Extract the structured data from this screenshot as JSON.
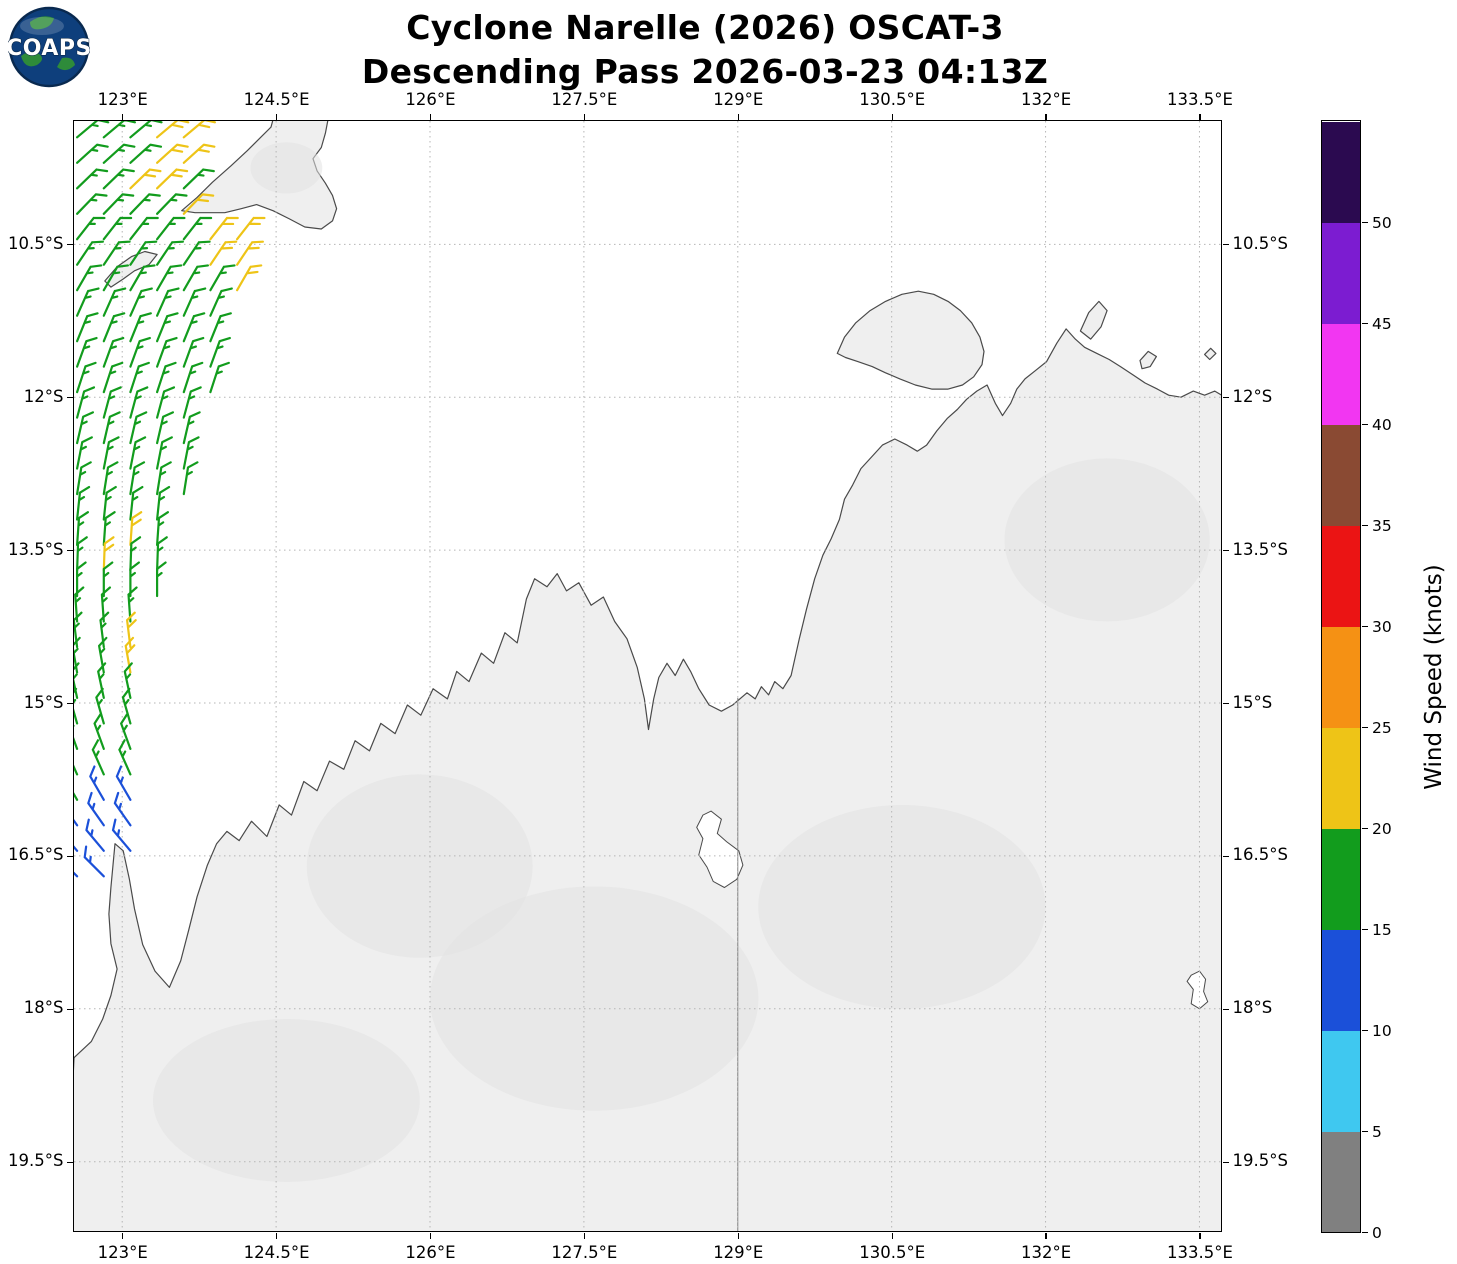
{
  "logo": {
    "text": "COAPS"
  },
  "chart_data": {
    "type": "map-windbarbs",
    "title_line1": "Cyclone Narelle (2026) OSCAT-3",
    "title_line2": "Descending Pass 2026-03-23 04:13Z",
    "lon_range": [
      122.53,
      133.71
    ],
    "lat_range": [
      9.29,
      20.18
    ],
    "x_ticks": [
      {
        "v": 123.0,
        "label": "123°E"
      },
      {
        "v": 124.5,
        "label": "124.5°E"
      },
      {
        "v": 126.0,
        "label": "126°E"
      },
      {
        "v": 127.5,
        "label": "127.5°E"
      },
      {
        "v": 129.0,
        "label": "129°E"
      },
      {
        "v": 130.5,
        "label": "130.5°E"
      },
      {
        "v": 132.0,
        "label": "132°E"
      },
      {
        "v": 133.5,
        "label": "133.5°E"
      }
    ],
    "y_ticks": [
      {
        "v": 10.5,
        "label": "10.5°S"
      },
      {
        "v": 12.0,
        "label": "12°S"
      },
      {
        "v": 13.5,
        "label": "13.5°S"
      },
      {
        "v": 15.0,
        "label": "15°S"
      },
      {
        "v": 16.5,
        "label": "16.5°S"
      },
      {
        "v": 18.0,
        "label": "18°S"
      },
      {
        "v": 19.5,
        "label": "19.5°S"
      }
    ],
    "grid": "dotted",
    "colorbar": {
      "label": "Wind Speed (knots)",
      "min": 0,
      "max": 55,
      "ticks": [
        0,
        5,
        10,
        15,
        20,
        25,
        30,
        35,
        40,
        45,
        50
      ],
      "colors": [
        "#808080",
        "#3fc8f0",
        "#1b50d9",
        "#129c1d",
        "#eec417",
        "#f59114",
        "#eb1414",
        "#8a4a33",
        "#f236f2",
        "#7c1cd1",
        "#2b0a50"
      ]
    },
    "speed_colors": {
      "B": {
        "color": "#1b50d9",
        "knots": 12
      },
      "G": {
        "color": "#129c1d",
        "knots": 17
      },
      "Y": {
        "color": "#eec417",
        "knots": 22
      }
    },
    "barb_dlon": 0.26,
    "barb_rows": [
      [
        9.45,
        122.56,
        50,
        "GGGYY"
      ],
      [
        9.7,
        122.56,
        48,
        "GGGYY"
      ],
      [
        9.95,
        122.56,
        46,
        "GGYYG"
      ],
      [
        10.2,
        122.56,
        44,
        "GGGGY"
      ],
      [
        10.45,
        122.56,
        38,
        "GGGGGYY"
      ],
      [
        10.7,
        122.56,
        34,
        "GGGGGYY"
      ],
      [
        10.95,
        122.56,
        30,
        "GGGGGGY"
      ],
      [
        11.2,
        122.56,
        24,
        "GGGGGG"
      ],
      [
        11.45,
        122.56,
        22,
        "GGGGGG"
      ],
      [
        11.7,
        122.56,
        20,
        "GGGGGG"
      ],
      [
        11.95,
        122.56,
        18,
        "GGGGGG"
      ],
      [
        12.2,
        122.56,
        15,
        "GGGGG"
      ],
      [
        12.45,
        122.56,
        13,
        "GGGGG"
      ],
      [
        12.7,
        122.56,
        11,
        "GGGGG"
      ],
      [
        12.95,
        122.56,
        9,
        "GGGGG"
      ],
      [
        13.2,
        122.56,
        6,
        "GGGG"
      ],
      [
        13.45,
        122.56,
        4,
        "GGYG"
      ],
      [
        13.7,
        122.56,
        2,
        "GYGG"
      ],
      [
        13.95,
        122.56,
        0,
        "GGGG"
      ],
      [
        14.2,
        122.56,
        356,
        "GGG"
      ],
      [
        14.45,
        122.56,
        353,
        "GGY"
      ],
      [
        14.7,
        122.56,
        350,
        "GGY"
      ],
      [
        14.95,
        122.56,
        348,
        "GGG"
      ],
      [
        15.2,
        122.56,
        344,
        "GGG"
      ],
      [
        15.45,
        122.56,
        340,
        "GGG"
      ],
      [
        15.7,
        122.56,
        336,
        "GGG"
      ],
      [
        15.95,
        122.56,
        330,
        "GBB"
      ],
      [
        16.2,
        122.56,
        325,
        "BBB"
      ],
      [
        16.45,
        122.56,
        320,
        "BBB"
      ],
      [
        16.7,
        122.56,
        315,
        "BB"
      ]
    ],
    "style": {
      "land_fill": "#efefef",
      "terrain_fill": "#e2e2e2",
      "coast_color": "#4a4a4a",
      "grid_color": "#b5b5b5"
    },
    "geo": {
      "land": {
        "australia-mainland": [
          [
            122.53,
            18.48
          ],
          [
            122.7,
            18.32
          ],
          [
            122.81,
            18.1
          ],
          [
            122.89,
            17.87
          ],
          [
            122.95,
            17.61
          ],
          [
            122.89,
            17.36
          ],
          [
            122.87,
            17.07
          ],
          [
            122.89,
            16.81
          ],
          [
            122.93,
            16.38
          ],
          [
            123.01,
            16.45
          ],
          [
            123.07,
            16.73
          ],
          [
            123.12,
            17.02
          ],
          [
            123.2,
            17.37
          ],
          [
            123.32,
            17.63
          ],
          [
            123.46,
            17.79
          ],
          [
            123.57,
            17.53
          ],
          [
            123.65,
            17.22
          ],
          [
            123.73,
            16.9
          ],
          [
            123.83,
            16.59
          ],
          [
            123.92,
            16.38
          ],
          [
            124.02,
            16.26
          ],
          [
            124.14,
            16.35
          ],
          [
            124.26,
            16.16
          ],
          [
            124.41,
            16.31
          ],
          [
            124.53,
            16.0
          ],
          [
            124.65,
            16.1
          ],
          [
            124.77,
            15.77
          ],
          [
            124.9,
            15.86
          ],
          [
            125.02,
            15.57
          ],
          [
            125.16,
            15.65
          ],
          [
            125.27,
            15.37
          ],
          [
            125.41,
            15.47
          ],
          [
            125.52,
            15.2
          ],
          [
            125.66,
            15.3
          ],
          [
            125.78,
            15.02
          ],
          [
            125.91,
            15.12
          ],
          [
            126.03,
            14.86
          ],
          [
            126.17,
            14.96
          ],
          [
            126.26,
            14.69
          ],
          [
            126.38,
            14.79
          ],
          [
            126.5,
            14.51
          ],
          [
            126.62,
            14.61
          ],
          [
            126.73,
            14.31
          ],
          [
            126.85,
            14.41
          ],
          [
            126.94,
            13.98
          ],
          [
            127.02,
            13.78
          ],
          [
            127.14,
            13.86
          ],
          [
            127.24,
            13.73
          ],
          [
            127.33,
            13.9
          ],
          [
            127.45,
            13.82
          ],
          [
            127.57,
            14.04
          ],
          [
            127.69,
            13.96
          ],
          [
            127.8,
            14.2
          ],
          [
            127.92,
            14.37
          ],
          [
            128.02,
            14.65
          ],
          [
            128.09,
            14.96
          ],
          [
            128.13,
            15.26
          ],
          [
            128.18,
            14.96
          ],
          [
            128.23,
            14.75
          ],
          [
            128.31,
            14.61
          ],
          [
            128.39,
            14.73
          ],
          [
            128.47,
            14.57
          ],
          [
            128.54,
            14.69
          ],
          [
            128.62,
            14.86
          ],
          [
            128.72,
            15.02
          ],
          [
            128.84,
            15.08
          ],
          [
            128.95,
            15.02
          ],
          [
            129.09,
            14.9
          ],
          [
            129.17,
            14.96
          ],
          [
            129.23,
            14.84
          ],
          [
            129.3,
            14.92
          ],
          [
            129.36,
            14.79
          ],
          [
            129.44,
            14.86
          ],
          [
            129.52,
            14.73
          ],
          [
            129.6,
            14.37
          ],
          [
            129.67,
            14.08
          ],
          [
            129.75,
            13.78
          ],
          [
            129.83,
            13.55
          ],
          [
            129.91,
            13.39
          ],
          [
            129.99,
            13.2
          ],
          [
            130.04,
            13.0
          ],
          [
            130.12,
            12.86
          ],
          [
            130.2,
            12.7
          ],
          [
            130.3,
            12.59
          ],
          [
            130.41,
            12.47
          ],
          [
            130.53,
            12.41
          ],
          [
            130.65,
            12.47
          ],
          [
            130.75,
            12.53
          ],
          [
            130.84,
            12.47
          ],
          [
            130.94,
            12.33
          ],
          [
            131.04,
            12.21
          ],
          [
            131.14,
            12.12
          ],
          [
            131.23,
            12.02
          ],
          [
            131.33,
            11.94
          ],
          [
            131.43,
            11.88
          ],
          [
            131.51,
            12.06
          ],
          [
            131.58,
            12.18
          ],
          [
            131.66,
            12.06
          ],
          [
            131.72,
            11.92
          ],
          [
            131.8,
            11.82
          ],
          [
            131.9,
            11.74
          ],
          [
            132.01,
            11.65
          ],
          [
            132.11,
            11.47
          ],
          [
            132.2,
            11.33
          ],
          [
            132.29,
            11.43
          ],
          [
            132.38,
            11.51
          ],
          [
            132.5,
            11.57
          ],
          [
            132.62,
            11.63
          ],
          [
            132.73,
            11.7
          ],
          [
            132.85,
            11.78
          ],
          [
            132.97,
            11.86
          ],
          [
            133.09,
            11.92
          ],
          [
            133.2,
            11.98
          ],
          [
            133.32,
            12.0
          ],
          [
            133.44,
            11.94
          ],
          [
            133.55,
            11.98
          ],
          [
            133.65,
            11.94
          ],
          [
            133.75,
            12.0
          ],
          [
            133.75,
            20.25
          ],
          [
            122.45,
            20.25
          ]
        ],
        "timor": [
          [
            123.58,
            10.17
          ],
          [
            123.73,
            10.04
          ],
          [
            123.88,
            9.89
          ],
          [
            124.06,
            9.73
          ],
          [
            124.22,
            9.58
          ],
          [
            124.35,
            9.45
          ],
          [
            124.45,
            9.35
          ],
          [
            124.49,
            9.2
          ],
          [
            125.02,
            9.2
          ],
          [
            124.98,
            9.41
          ],
          [
            124.94,
            9.55
          ],
          [
            124.86,
            9.66
          ],
          [
            124.9,
            9.78
          ],
          [
            124.98,
            9.9
          ],
          [
            125.05,
            10.02
          ],
          [
            125.09,
            10.15
          ],
          [
            125.05,
            10.27
          ],
          [
            124.94,
            10.35
          ],
          [
            124.78,
            10.33
          ],
          [
            124.63,
            10.25
          ],
          [
            124.47,
            10.17
          ],
          [
            124.31,
            10.11
          ],
          [
            124.16,
            10.15
          ],
          [
            124.0,
            10.19
          ],
          [
            123.85,
            10.19
          ],
          [
            123.71,
            10.19
          ]
        ],
        "rote": [
          [
            122.83,
            10.86
          ],
          [
            122.95,
            10.72
          ],
          [
            123.09,
            10.62
          ],
          [
            123.22,
            10.57
          ],
          [
            123.34,
            10.6
          ],
          [
            123.26,
            10.7
          ],
          [
            123.12,
            10.76
          ],
          [
            123.01,
            10.84
          ],
          [
            122.89,
            10.92
          ]
        ],
        "tiwi-islands": [
          [
            129.97,
            11.57
          ],
          [
            130.04,
            11.41
          ],
          [
            130.15,
            11.27
          ],
          [
            130.29,
            11.15
          ],
          [
            130.44,
            11.06
          ],
          [
            130.6,
            10.99
          ],
          [
            130.76,
            10.96
          ],
          [
            130.91,
            10.99
          ],
          [
            131.05,
            11.06
          ],
          [
            131.17,
            11.15
          ],
          [
            131.28,
            11.27
          ],
          [
            131.36,
            11.41
          ],
          [
            131.4,
            11.55
          ],
          [
            131.38,
            11.68
          ],
          [
            131.3,
            11.8
          ],
          [
            131.19,
            11.88
          ],
          [
            131.05,
            11.92
          ],
          [
            130.89,
            11.92
          ],
          [
            130.73,
            11.88
          ],
          [
            130.58,
            11.82
          ],
          [
            130.44,
            11.76
          ],
          [
            130.31,
            11.7
          ],
          [
            130.17,
            11.65
          ],
          [
            130.05,
            11.61
          ]
        ],
        "croker-island": [
          [
            132.34,
            11.35
          ],
          [
            132.42,
            11.17
          ],
          [
            132.52,
            11.06
          ],
          [
            132.6,
            11.15
          ],
          [
            132.54,
            11.31
          ],
          [
            132.44,
            11.43
          ]
        ],
        "goulburn-islands": [
          [
            132.92,
            11.64
          ],
          [
            133.0,
            11.55
          ],
          [
            133.08,
            11.6
          ],
          [
            133.02,
            11.7
          ],
          [
            132.94,
            11.72
          ]
        ],
        "small-isle-east": [
          [
            133.55,
            11.58
          ],
          [
            133.61,
            11.52
          ],
          [
            133.66,
            11.57
          ],
          [
            133.6,
            11.63
          ]
        ]
      },
      "lakes": {
        "argyle": [
          [
            128.74,
            16.06
          ],
          [
            128.84,
            16.14
          ],
          [
            128.8,
            16.28
          ],
          [
            128.89,
            16.36
          ],
          [
            129.01,
            16.45
          ],
          [
            129.05,
            16.59
          ],
          [
            128.99,
            16.73
          ],
          [
            128.87,
            16.81
          ],
          [
            128.76,
            16.75
          ],
          [
            128.7,
            16.61
          ],
          [
            128.62,
            16.49
          ],
          [
            128.66,
            16.33
          ],
          [
            128.6,
            16.22
          ],
          [
            128.66,
            16.1
          ]
        ],
        "woods": [
          [
            133.42,
            17.67
          ],
          [
            133.5,
            17.63
          ],
          [
            133.56,
            17.71
          ],
          [
            133.54,
            17.83
          ],
          [
            133.58,
            17.93
          ],
          [
            133.5,
            18.0
          ],
          [
            133.42,
            17.95
          ],
          [
            133.44,
            17.81
          ],
          [
            133.38,
            17.73
          ]
        ]
      },
      "terrain_patches": [
        [
          125.9,
          16.6,
          1.1,
          0.9
        ],
        [
          127.6,
          17.9,
          1.6,
          1.1
        ],
        [
          130.6,
          17.0,
          1.4,
          1.0
        ],
        [
          132.6,
          13.4,
          1.0,
          0.8
        ],
        [
          124.6,
          18.9,
          1.3,
          0.8
        ],
        [
          124.6,
          9.75,
          0.35,
          0.25
        ]
      ],
      "state_border": {
        "lon": 129.0,
        "lat_from": 14.95,
        "lat_to": 20.25
      }
    }
  }
}
